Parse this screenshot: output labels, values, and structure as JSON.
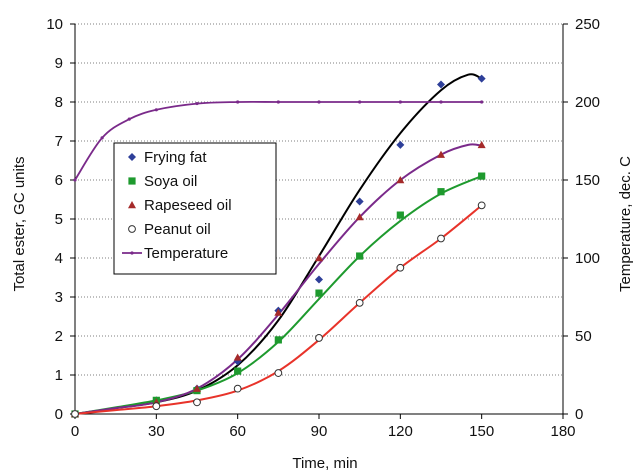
{
  "chart_data": {
    "type": "scatter",
    "xlabel": "Time, min",
    "ylabel": "Total ester,  GC units",
    "y2label": "Temperature, dec. C",
    "xlim": [
      0,
      180
    ],
    "ylim": [
      0,
      10
    ],
    "y2lim": [
      0,
      250
    ],
    "xticks": [
      "0",
      "30",
      "60",
      "90",
      "120",
      "150",
      "180"
    ],
    "yticks": [
      "0",
      "1",
      "2",
      "3",
      "4",
      "5",
      "6",
      "7",
      "8",
      "9",
      "10"
    ],
    "y2ticks": [
      "0",
      "50",
      "100",
      "150",
      "200",
      "250"
    ],
    "grid": "horizontal dotted",
    "legend_position": "left-center",
    "series": [
      {
        "name": "Frying fat",
        "marker": "diamond",
        "color": "#2e3f99",
        "fit_color": "#000000",
        "x": [
          0,
          30,
          45,
          60,
          75,
          90,
          105,
          120,
          135,
          150
        ],
        "y": [
          0.0,
          0.35,
          0.65,
          1.35,
          2.65,
          3.45,
          5.45,
          6.9,
          8.45,
          8.6
        ],
        "fit": [
          [
            0,
            0
          ],
          [
            15,
            0.15
          ],
          [
            30,
            0.3
          ],
          [
            45,
            0.6
          ],
          [
            60,
            1.25
          ],
          [
            75,
            2.4
          ],
          [
            90,
            4.05
          ],
          [
            105,
            5.75
          ],
          [
            120,
            7.2
          ],
          [
            135,
            8.3
          ],
          [
            145,
            8.7
          ],
          [
            150,
            8.6
          ]
        ]
      },
      {
        "name": "Soya oil",
        "marker": "square",
        "color": "#1e9a2e",
        "fit_color": "#1e9a2e",
        "x": [
          0,
          30,
          45,
          60,
          75,
          90,
          105,
          120,
          135,
          150
        ],
        "y": [
          0.0,
          0.35,
          0.6,
          1.1,
          1.9,
          3.1,
          4.05,
          5.1,
          5.7,
          6.1
        ],
        "fit": [
          [
            0,
            0
          ],
          [
            15,
            0.17
          ],
          [
            30,
            0.35
          ],
          [
            45,
            0.6
          ],
          [
            60,
            1.05
          ],
          [
            75,
            1.85
          ],
          [
            90,
            2.95
          ],
          [
            105,
            4.05
          ],
          [
            120,
            4.95
          ],
          [
            135,
            5.65
          ],
          [
            150,
            6.1
          ]
        ]
      },
      {
        "name": "Rapeseed oil",
        "marker": "triangle",
        "color": "#a52a2a",
        "fit_color": "#7a2a8a",
        "x": [
          0,
          30,
          45,
          60,
          75,
          90,
          105,
          120,
          135,
          150
        ],
        "y": [
          0.0,
          0.3,
          0.65,
          1.45,
          2.6,
          4.0,
          5.05,
          6.0,
          6.65,
          6.9
        ],
        "fit": [
          [
            0,
            0
          ],
          [
            15,
            0.15
          ],
          [
            30,
            0.3
          ],
          [
            45,
            0.65
          ],
          [
            60,
            1.4
          ],
          [
            75,
            2.55
          ],
          [
            90,
            3.85
          ],
          [
            105,
            5.05
          ],
          [
            120,
            6.0
          ],
          [
            135,
            6.65
          ],
          [
            145,
            6.9
          ],
          [
            150,
            6.88
          ]
        ]
      },
      {
        "name": "Peanut oil",
        "marker": "circle-open",
        "color": "#333333",
        "fit_color": "#e8332a",
        "x": [
          0,
          30,
          45,
          60,
          75,
          90,
          105,
          120,
          135,
          150
        ],
        "y": [
          0.0,
          0.2,
          0.3,
          0.65,
          1.05,
          1.95,
          2.85,
          3.75,
          4.5,
          5.35
        ],
        "fit": [
          [
            0,
            0
          ],
          [
            15,
            0.1
          ],
          [
            30,
            0.2
          ],
          [
            45,
            0.35
          ],
          [
            60,
            0.6
          ],
          [
            75,
            1.1
          ],
          [
            90,
            1.9
          ],
          [
            105,
            2.85
          ],
          [
            120,
            3.75
          ],
          [
            135,
            4.5
          ],
          [
            150,
            5.35
          ]
        ]
      },
      {
        "name": "Temperature",
        "axis": "right",
        "marker": "small-dot-line",
        "color": "#7a2a8a",
        "x": [
          0,
          10,
          20,
          30,
          45,
          60,
          75,
          90,
          105,
          120,
          135,
          150
        ],
        "y": [
          150,
          177,
          189,
          195,
          199,
          200,
          200,
          200,
          200,
          200,
          200,
          200
        ]
      }
    ]
  }
}
